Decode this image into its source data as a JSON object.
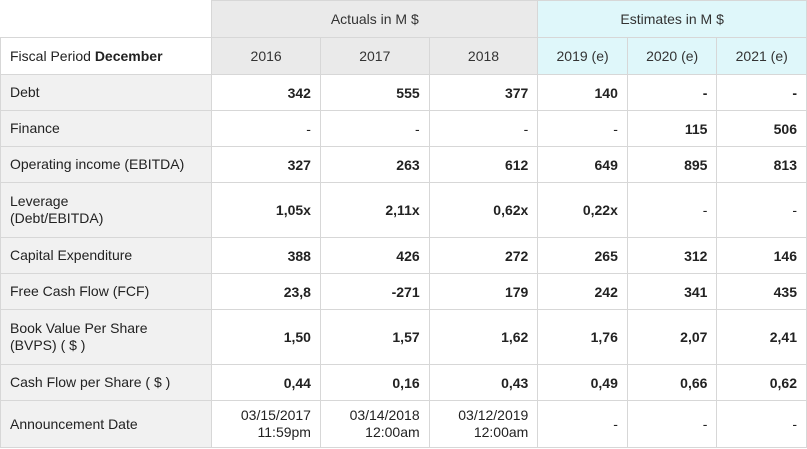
{
  "header": {
    "actuals_label": "Actuals in M $",
    "estimates_label": "Estimates in M $",
    "fiscal_period_prefix": "Fiscal Period ",
    "fiscal_period_month": "December",
    "years": [
      "2016",
      "2017",
      "2018",
      "2019 (e)",
      "2020 (e)",
      "2021 (e)"
    ]
  },
  "rows": [
    {
      "label": "Debt",
      "values": [
        "342",
        "555",
        "377",
        "140",
        "-",
        "-"
      ]
    },
    {
      "label": "Finance",
      "values": [
        "-",
        "-",
        "-",
        "-",
        "115",
        "506"
      ]
    },
    {
      "label": "Operating income (EBITDA)",
      "values": [
        "327",
        "263",
        "612",
        "649",
        "895",
        "813"
      ]
    },
    {
      "label_line1": "Leverage",
      "label_line2": "(Debt/EBITDA)",
      "values": [
        "1,05x",
        "2,11x",
        "0,62x",
        "0,22x",
        "-",
        "-"
      ]
    },
    {
      "label": "Capital Expenditure",
      "values": [
        "388",
        "426",
        "272",
        "265",
        "312",
        "146"
      ]
    },
    {
      "label": "Free Cash Flow (FCF)",
      "values": [
        "23,8",
        "-271",
        "179",
        "242",
        "341",
        "435"
      ]
    },
    {
      "label_line1": "Book Value Per Share",
      "label_line2": "(BVPS) ( $ )",
      "values": [
        "1,50",
        "1,57",
        "1,62",
        "1,76",
        "2,07",
        "2,41"
      ]
    },
    {
      "label": "Cash Flow per Share ( $ )",
      "values": [
        "0,44",
        "0,16",
        "0,43",
        "0,49",
        "0,66",
        "0,62"
      ]
    },
    {
      "label": "Announcement Date",
      "dates": [
        {
          "date": "03/15/2017",
          "time": "11:59pm"
        },
        {
          "date": "03/14/2018",
          "time": "12:00am"
        },
        {
          "date": "03/12/2019",
          "time": "12:00am"
        }
      ],
      "values": [
        "-",
        "-",
        "-"
      ]
    }
  ]
}
